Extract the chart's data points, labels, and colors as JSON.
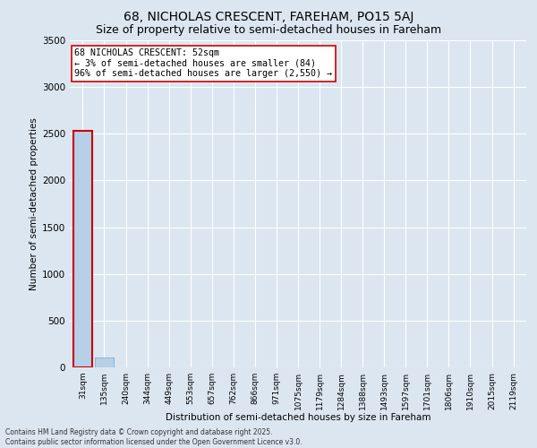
{
  "title": "68, NICHOLAS CRESCENT, FAREHAM, PO15 5AJ",
  "subtitle": "Size of property relative to semi-detached houses in Fareham",
  "xlabel": "Distribution of semi-detached houses by size in Fareham",
  "ylabel": "Number of semi-detached properties",
  "categories": [
    "31sqm",
    "135sqm",
    "240sqm",
    "344sqm",
    "449sqm",
    "553sqm",
    "657sqm",
    "762sqm",
    "866sqm",
    "971sqm",
    "1075sqm",
    "1179sqm",
    "1284sqm",
    "1388sqm",
    "1493sqm",
    "1597sqm",
    "1701sqm",
    "1806sqm",
    "1910sqm",
    "2015sqm",
    "2119sqm"
  ],
  "values": [
    2530,
    110,
    0,
    0,
    0,
    0,
    0,
    0,
    0,
    0,
    0,
    0,
    0,
    0,
    0,
    0,
    0,
    0,
    0,
    0,
    0
  ],
  "bar_color": "#b8cfe8",
  "bar_edge_color": "#7aafd4",
  "highlight_bar_index": 0,
  "highlight_edge_color": "#cc0000",
  "annotation_title": "68 NICHOLAS CRESCENT: 52sqm",
  "annotation_line1": "← 3% of semi-detached houses are smaller (84)",
  "annotation_line2": "96% of semi-detached houses are larger (2,550) →",
  "annotation_box_color": "#ffffff",
  "annotation_box_edge": "#cc0000",
  "ylim": [
    0,
    3500
  ],
  "yticks": [
    0,
    500,
    1000,
    1500,
    2000,
    2500,
    3000,
    3500
  ],
  "bg_color": "#dce6f1",
  "title_fontsize": 10,
  "subtitle_fontsize": 9,
  "footer_line1": "Contains HM Land Registry data © Crown copyright and database right 2025.",
  "footer_line2": "Contains public sector information licensed under the Open Government Licence v3.0."
}
